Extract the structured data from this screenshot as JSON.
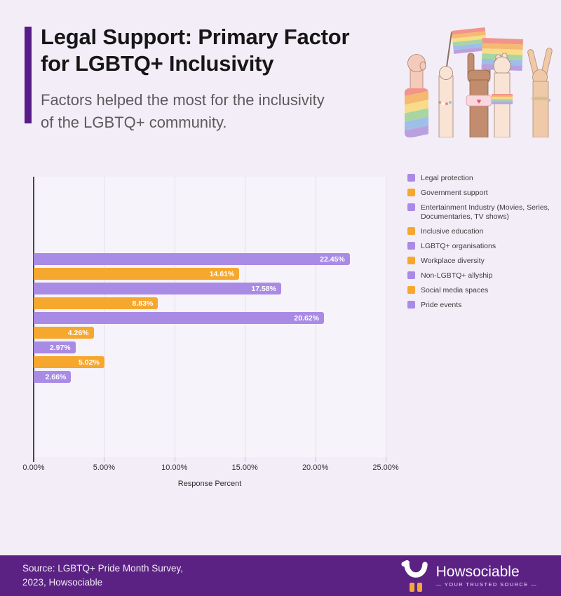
{
  "page": {
    "background": "#F3EDF8",
    "accent_color": "#571C87"
  },
  "header": {
    "title_lines": [
      "Legal Support: Primary Factor",
      "for LGBTQ+ Inclusivity"
    ],
    "subtitle_lines": [
      "Factors helped the most for the inclusivity",
      "of the LGBTQ+ community."
    ]
  },
  "chart_data": {
    "type": "bar",
    "orientation": "horizontal",
    "categories": [
      "Legal protection",
      "Government support",
      "Entertainment Industry (Movies, Series, Documentaries, TV shows)",
      "Inclusive education",
      "LGBTQ+ organisations",
      "Workplace diversity",
      "Non-LGBTQ+ allyship",
      "Social media spaces",
      "Pride events"
    ],
    "values": [
      22.45,
      14.61,
      17.58,
      8.83,
      20.62,
      4.26,
      2.97,
      5.02,
      2.66
    ],
    "labels": [
      "22.45%",
      "14.61%",
      "17.58%",
      "8.83%",
      "20.62%",
      "4.26%",
      "2.97%",
      "5.02%",
      "2.66%"
    ],
    "bar_colors": [
      "purple",
      "orange",
      "purple",
      "orange",
      "purple",
      "orange",
      "purple",
      "orange",
      "purple"
    ],
    "series_colors": {
      "purple": "#A98BE5",
      "orange": "#F5A72E"
    },
    "xlabel": "Response Percent",
    "x_ticks": [
      "0.00%",
      "5.00%",
      "10.00%",
      "15.00%",
      "20.00%",
      "25.00%"
    ],
    "xlim": [
      0,
      25
    ],
    "grid": true,
    "legend_position": "right"
  },
  "legend": {
    "items": [
      {
        "label": "Legal protection",
        "color": "#A98BE5"
      },
      {
        "label": "Government support",
        "color": "#F5A72E"
      },
      {
        "label": "Entertainment Industry (Movies, Series, Documentaries, TV shows)",
        "color": "#A98BE5"
      },
      {
        "label": "Inclusive education",
        "color": "#F5A72E"
      },
      {
        "label": "LGBTQ+ organisations",
        "color": "#A98BE5"
      },
      {
        "label": "Workplace diversity",
        "color": "#F5A72E"
      },
      {
        "label": "Non-LGBTQ+ allyship",
        "color": "#A98BE5"
      },
      {
        "label": "Social media spaces",
        "color": "#F5A72E"
      },
      {
        "label": "Pride events",
        "color": "#A98BE5"
      }
    ]
  },
  "footer": {
    "source_lines": [
      "Source: LGBTQ+ Pride Month Survey,",
      "2023, Howsociable"
    ],
    "logo_text": "Howsociable",
    "tagline": "—  YOUR TRUSTED SOURCE  —",
    "background": "#5B2284"
  }
}
